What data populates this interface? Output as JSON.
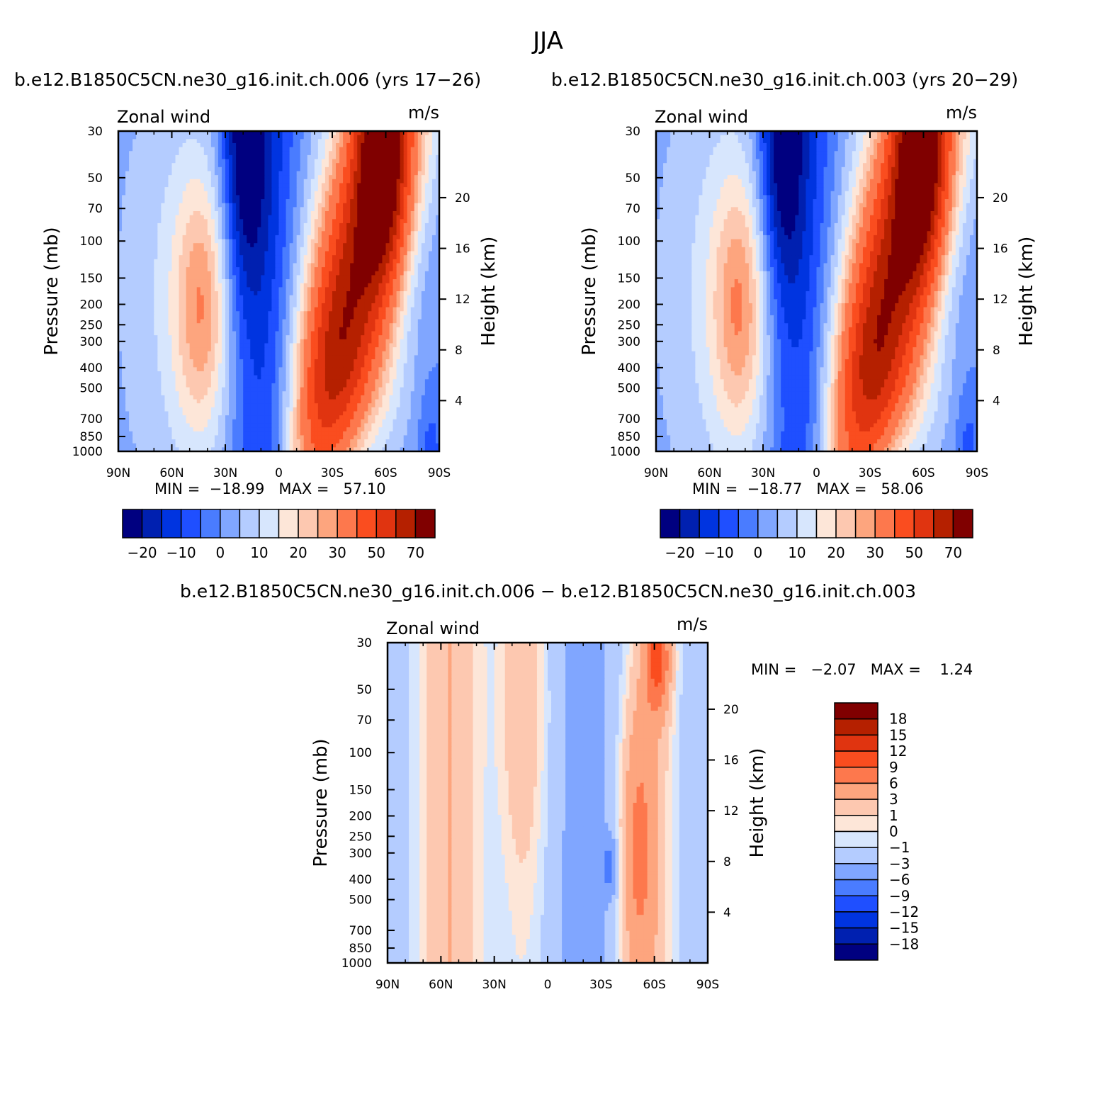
{
  "figure_title": "JJA",
  "chart_data": [
    {
      "type": "heatmap",
      "title": "b.e12.B1850C5CN.ne30_g16.init.ch.006 (yrs 17−26)",
      "left_label": "Zonal wind",
      "right_label": "m/s",
      "ylabel": "Pressure (mb)",
      "y2label": "Height (km)",
      "x_ticks": [
        "90N",
        "60N",
        "30N",
        "0",
        "30S",
        "60S",
        "90S"
      ],
      "y_ticks": [
        "30",
        "50",
        "70",
        "100",
        "150",
        "200",
        "250",
        "300",
        "400",
        "500",
        "700",
        "850",
        "1000"
      ],
      "y2_ticks": [
        "4",
        "8",
        "12",
        "16",
        "20"
      ],
      "min_text": "MIN =  −18.99   MAX =   57.10",
      "min": -18.99,
      "max": 57.1,
      "colorbar_labels": [
        "−20",
        "−10",
        "0",
        "10",
        "20",
        "30",
        "50",
        "70"
      ],
      "colorbar_colors": [
        "#000080",
        "#0020b0",
        "#0034e0",
        "#1f4fff",
        "#4a7cff",
        "#80a6ff",
        "#b4ccff",
        "#d7e6fd",
        "#fde6d8",
        "#fdc8b0",
        "#fda57e",
        "#fd784d",
        "#fa4d1f",
        "#e03410",
        "#b52000",
        "#800000"
      ]
    },
    {
      "type": "heatmap",
      "title": "b.e12.B1850C5CN.ne30_g16.init.ch.003 (yrs 20−29)",
      "left_label": "Zonal wind",
      "right_label": "m/s",
      "ylabel": "Pressure (mb)",
      "y2label": "Height (km)",
      "x_ticks": [
        "90N",
        "60N",
        "30N",
        "0",
        "30S",
        "60S",
        "90S"
      ],
      "y_ticks": [
        "30",
        "50",
        "70",
        "100",
        "150",
        "200",
        "250",
        "300",
        "400",
        "500",
        "700",
        "850",
        "1000"
      ],
      "y2_ticks": [
        "4",
        "8",
        "12",
        "16",
        "20"
      ],
      "min_text": "MIN =  −18.77   MAX =   58.06",
      "min": -18.77,
      "max": 58.06,
      "colorbar_labels": [
        "−20",
        "−10",
        "0",
        "10",
        "20",
        "30",
        "50",
        "70"
      ],
      "colorbar_colors": [
        "#000080",
        "#0020b0",
        "#0034e0",
        "#1f4fff",
        "#4a7cff",
        "#80a6ff",
        "#b4ccff",
        "#d7e6fd",
        "#fde6d8",
        "#fdc8b0",
        "#fda57e",
        "#fd784d",
        "#fa4d1f",
        "#e03410",
        "#b52000",
        "#800000"
      ]
    },
    {
      "type": "heatmap",
      "title": "b.e12.B1850C5CN.ne30_g16.init.ch.006 − b.e12.B1850C5CN.ne30_g16.init.ch.003",
      "left_label": "Zonal wind",
      "right_label": "m/s",
      "ylabel": "Pressure (mb)",
      "y2label": "Height (km)",
      "x_ticks": [
        "90N",
        "60N",
        "30N",
        "0",
        "30S",
        "60S",
        "90S"
      ],
      "y_ticks": [
        "30",
        "50",
        "70",
        "100",
        "150",
        "200",
        "250",
        "300",
        "400",
        "500",
        "700",
        "850",
        "1000"
      ],
      "y2_ticks": [
        "4",
        "8",
        "12",
        "16",
        "20"
      ],
      "min_text": "MIN =   −2.07   MAX =    1.24",
      "min": -2.07,
      "max": 1.24,
      "colorbar_labels": [
        "18",
        "15",
        "12",
        "9",
        "6",
        "3",
        "1",
        "0",
        "−1",
        "−3",
        "−6",
        "−9",
        "−12",
        "−15",
        "−18"
      ],
      "colorbar_colors": [
        "#800000",
        "#b52000",
        "#e03410",
        "#fa4d1f",
        "#fd784d",
        "#fda57e",
        "#fdc8b0",
        "#fde6d8",
        "#d7e6fd",
        "#b4ccff",
        "#80a6ff",
        "#4a7cff",
        "#1f4fff",
        "#0034e0",
        "#0020b0",
        "#000080"
      ]
    }
  ]
}
